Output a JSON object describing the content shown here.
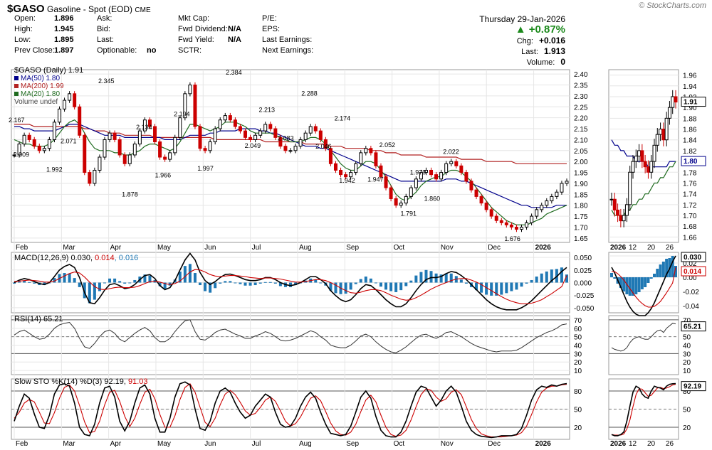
{
  "header": {
    "symbol": "$GASO",
    "name": "Gasoline - Spot (EOD)",
    "exchange": "CME",
    "logo": "© StockCharts.com",
    "date": "Thursday  29-Jan-2026",
    "pct_change": "▲ +0.87%",
    "quote_left": [
      [
        "Open:",
        "1.896"
      ],
      [
        "High:",
        "1.945"
      ],
      [
        "Low:",
        "1.895"
      ],
      [
        "Prev Close:",
        "1.897"
      ]
    ],
    "quote_mid": [
      [
        "Ask:",
        ""
      ],
      [
        "Bid:",
        ""
      ],
      [
        "Last:",
        ""
      ],
      [
        "Optionable:",
        "no"
      ]
    ],
    "quote_mid2": [
      [
        "Mkt Cap:",
        ""
      ],
      [
        "Fwd Dividend:",
        "N/A"
      ],
      [
        "Fwd Yield:",
        "N/A"
      ],
      [
        "SCTR:",
        ""
      ]
    ],
    "quote_mid3": [
      [
        "P/E:",
        ""
      ],
      [
        "EPS:",
        ""
      ],
      [
        "Last Earnings:",
        ""
      ],
      [
        "Next Earnings:",
        ""
      ]
    ],
    "quote_right": [
      [
        "Chg:",
        "+0.016"
      ],
      [
        "Last:",
        "1.913"
      ],
      [
        "Volume:",
        "0"
      ]
    ]
  },
  "colors": {
    "up": "#000000",
    "down": "#cc0000",
    "ma50": "#00008b",
    "ma200": "#b22222",
    "ma20": "#1f6b1f",
    "macd": "#000000",
    "signal": "#cc0000",
    "hist": "#1f78b4",
    "grid": "#e6e6e6"
  },
  "legend": {
    "price": "$GASO (Daily) 1.91",
    "ma50": "MA(50) 1.80",
    "ma200": "MA(200) 1.99",
    "ma20": "MA(20) 1.80",
    "volume": "Volume undef",
    "macd_a": "MACD(12,26,9) 0.030, ",
    "macd_b": "0.014",
    "macd_c": ", 0.016",
    "rsi": "RSI(14) 65.21",
    "sto_a": "Slow STO %K(14) %D(3) 92.19, ",
    "sto_b": "91.03"
  },
  "right_tags": {
    "price": "1.91",
    "ma": "1.80",
    "macd": "0.030",
    "signal": "0.014",
    "rsi": "65.21",
    "sto": "92.19"
  },
  "chart_data": {
    "type": "line",
    "title": "$GASO Gasoline - Spot (EOD) CME",
    "x_ticks": [
      "Feb",
      "Mar",
      "Apr",
      "May",
      "Jun",
      "Jul",
      "Aug",
      "Sep",
      "Oct",
      "Nov",
      "Dec",
      "2026"
    ],
    "zoom_x_ticks": [
      "2026",
      "12",
      "20",
      "26"
    ],
    "price_axis": {
      "ylim": [
        1.63,
        2.42
      ],
      "ticks": [
        "2.40",
        "2.35",
        "2.30",
        "2.25",
        "2.20",
        "2.15",
        "2.10",
        "2.05",
        "2.00",
        "1.95",
        "1.90",
        "1.85",
        "1.80",
        "1.75",
        "1.70",
        "1.65"
      ]
    },
    "zoom_price_axis": {
      "ylim": [
        1.65,
        1.97
      ],
      "ticks": [
        "1.96",
        "1.94",
        "1.92",
        "1.90",
        "1.88",
        "1.86",
        "1.84",
        "1.82",
        "1.80",
        "1.78",
        "1.76",
        "1.74",
        "1.72",
        "1.70",
        "1.68",
        "1.66"
      ]
    },
    "price_annotations": [
      {
        "m": 0,
        "v": 2.167
      },
      {
        "m": 0.1,
        "v": 2.009
      },
      {
        "m": 0.8,
        "v": 1.992
      },
      {
        "m": 1.1,
        "v": 2.071
      },
      {
        "m": 1.9,
        "v": 2.345
      },
      {
        "m": 2.4,
        "v": 1.878
      },
      {
        "m": 2.7,
        "v": 2.134
      },
      {
        "m": 3.1,
        "v": 1.966
      },
      {
        "m": 3.5,
        "v": 2.194
      },
      {
        "m": 4.0,
        "v": 1.997
      },
      {
        "m": 4.6,
        "v": 2.384
      },
      {
        "m": 5.0,
        "v": 2.049
      },
      {
        "m": 5.3,
        "v": 2.213
      },
      {
        "m": 5.7,
        "v": 2.083
      },
      {
        "m": 6.2,
        "v": 2.288
      },
      {
        "m": 6.5,
        "v": 2.046
      },
      {
        "m": 6.9,
        "v": 2.174
      },
      {
        "m": 7.0,
        "v": 1.942
      },
      {
        "m": 7.6,
        "v": 1.947
      },
      {
        "m": 7.85,
        "v": 2.052
      },
      {
        "m": 8.3,
        "v": 1.791
      },
      {
        "m": 8.5,
        "v": 1.979
      },
      {
        "m": 8.8,
        "v": 1.86
      },
      {
        "m": 9.2,
        "v": 2.022
      },
      {
        "m": 10.5,
        "v": 1.676
      }
    ],
    "close": [
      2.03,
      2.08,
      2.12,
      2.1,
      2.07,
      2.05,
      2.06,
      2.1,
      2.18,
      2.24,
      2.28,
      2.31,
      2.25,
      2.12,
      1.95,
      1.9,
      1.96,
      2.02,
      2.1,
      2.13,
      2.1,
      2.03,
      1.99,
      2.03,
      2.08,
      2.14,
      2.19,
      2.16,
      2.09,
      2.02,
      2.01,
      2.04,
      2.11,
      2.2,
      2.31,
      2.35,
      2.16,
      2.06,
      2.05,
      2.09,
      2.15,
      2.19,
      2.21,
      2.19,
      2.16,
      2.14,
      2.11,
      2.1,
      2.12,
      2.14,
      2.17,
      2.15,
      2.11,
      2.07,
      2.05,
      2.05,
      2.07,
      2.1,
      2.13,
      2.16,
      2.14,
      2.1,
      2.06,
      1.99,
      1.96,
      1.94,
      1.93,
      1.95,
      1.99,
      2.04,
      2.06,
      2.04,
      1.98,
      1.93,
      1.88,
      1.83,
      1.8,
      1.81,
      1.84,
      1.88,
      1.92,
      1.95,
      1.96,
      1.94,
      1.92,
      1.95,
      1.99,
      2.0,
      1.98,
      1.95,
      1.91,
      1.87,
      1.84,
      1.81,
      1.78,
      1.75,
      1.73,
      1.72,
      1.71,
      1.7,
      1.69,
      1.7,
      1.72,
      1.75,
      1.78,
      1.8,
      1.82,
      1.84,
      1.86,
      1.9,
      1.91
    ],
    "ma50": [
      2.16,
      2.16,
      2.15,
      2.15,
      2.14,
      2.14,
      2.14,
      2.14,
      2.14,
      2.15,
      2.16,
      2.17,
      2.17,
      2.17,
      2.16,
      2.15,
      2.14,
      2.13,
      2.12,
      2.12,
      2.12,
      2.12,
      2.11,
      2.11,
      2.11,
      2.11,
      2.11,
      2.11,
      2.11,
      2.11,
      2.1,
      2.1,
      2.1,
      2.1,
      2.11,
      2.12,
      2.12,
      2.12,
      2.12,
      2.13,
      2.13,
      2.14,
      2.14,
      2.14,
      2.14,
      2.15,
      2.15,
      2.15,
      2.15,
      2.14,
      2.14,
      2.13,
      2.13,
      2.12,
      2.11,
      2.1,
      2.09,
      2.08,
      2.07,
      2.07,
      2.07,
      2.06,
      2.06,
      2.05,
      2.04,
      2.03,
      2.02,
      2.01,
      2.0,
      1.99,
      1.98,
      1.97,
      1.96,
      1.95,
      1.94,
      1.93,
      1.92,
      1.91,
      1.91,
      1.91,
      1.91,
      1.91,
      1.91,
      1.91,
      1.91,
      1.91,
      1.92,
      1.92,
      1.92,
      1.91,
      1.91,
      1.9,
      1.89,
      1.88,
      1.87,
      1.86,
      1.85,
      1.84,
      1.83,
      1.82,
      1.81,
      1.8,
      1.8,
      1.79,
      1.79,
      1.79,
      1.79,
      1.79,
      1.8,
      1.8,
      1.8
    ],
    "ma200": [
      2.17,
      2.17,
      2.17,
      2.17,
      2.16,
      2.16,
      2.16,
      2.16,
      2.16,
      2.16,
      2.16,
      2.16,
      2.16,
      2.16,
      2.15,
      2.15,
      2.14,
      2.14,
      2.14,
      2.13,
      2.13,
      2.13,
      2.12,
      2.12,
      2.12,
      2.12,
      2.12,
      2.12,
      2.11,
      2.11,
      2.11,
      2.11,
      2.11,
      2.11,
      2.11,
      2.11,
      2.11,
      2.11,
      2.11,
      2.11,
      2.1,
      2.1,
      2.1,
      2.1,
      2.1,
      2.1,
      2.1,
      2.1,
      2.1,
      2.1,
      2.09,
      2.09,
      2.09,
      2.09,
      2.09,
      2.09,
      2.09,
      2.09,
      2.08,
      2.08,
      2.08,
      2.08,
      2.08,
      2.07,
      2.07,
      2.07,
      2.06,
      2.06,
      2.06,
      2.06,
      2.06,
      2.05,
      2.05,
      2.05,
      2.04,
      2.04,
      2.04,
      2.03,
      2.03,
      2.03,
      2.03,
      2.03,
      2.02,
      2.02,
      2.02,
      2.02,
      2.02,
      2.02,
      2.02,
      2.01,
      2.01,
      2.01,
      2.01,
      2.01,
      2.0,
      2.0,
      2.0,
      2.0,
      2.0,
      2.0,
      1.99,
      1.99,
      1.99,
      1.99,
      1.99,
      1.99,
      1.99,
      1.99,
      1.99,
      1.99,
      1.99
    ],
    "ma20": [
      2.1,
      2.09,
      2.08,
      2.08,
      2.07,
      2.07,
      2.07,
      2.08,
      2.1,
      2.13,
      2.16,
      2.18,
      2.19,
      2.17,
      2.13,
      2.09,
      2.06,
      2.05,
      2.05,
      2.05,
      2.04,
      2.04,
      2.03,
      2.03,
      2.04,
      2.05,
      2.07,
      2.08,
      2.08,
      2.07,
      2.06,
      2.05,
      2.06,
      2.09,
      2.13,
      2.17,
      2.17,
      2.16,
      2.15,
      2.14,
      2.15,
      2.16,
      2.18,
      2.18,
      2.18,
      2.17,
      2.16,
      2.14,
      2.13,
      2.13,
      2.13,
      2.13,
      2.12,
      2.11,
      2.1,
      2.09,
      2.09,
      2.09,
      2.1,
      2.11,
      2.11,
      2.1,
      2.08,
      2.05,
      2.02,
      1.99,
      1.97,
      1.96,
      1.96,
      1.98,
      2.0,
      2.0,
      1.99,
      1.96,
      1.93,
      1.89,
      1.85,
      1.83,
      1.82,
      1.84,
      1.86,
      1.89,
      1.91,
      1.92,
      1.93,
      1.93,
      1.95,
      1.96,
      1.96,
      1.95,
      1.93,
      1.91,
      1.88,
      1.85,
      1.82,
      1.79,
      1.77,
      1.75,
      1.73,
      1.72,
      1.71,
      1.71,
      1.71,
      1.72,
      1.73,
      1.74,
      1.76,
      1.77,
      1.78,
      1.79,
      1.8
    ],
    "zoom_close": [
      1.73,
      1.71,
      1.7,
      1.69,
      1.7,
      1.72,
      1.78,
      1.8,
      1.81,
      1.82,
      1.8,
      1.79,
      1.78,
      1.8,
      1.83,
      1.85,
      1.86,
      1.84,
      1.88,
      1.9,
      1.92,
      1.91
    ],
    "zoom_ma50": [
      1.84,
      1.83,
      1.83,
      1.82,
      1.82,
      1.81,
      1.81,
      1.81,
      1.8,
      1.8,
      1.8,
      1.8,
      1.79,
      1.79,
      1.79,
      1.79,
      1.79,
      1.79,
      1.79,
      1.8,
      1.8,
      1.8
    ],
    "zoom_ma20": [
      1.71,
      1.7,
      1.7,
      1.7,
      1.7,
      1.71,
      1.71,
      1.72,
      1.72,
      1.73,
      1.73,
      1.74,
      1.74,
      1.75,
      1.76,
      1.76,
      1.77,
      1.77,
      1.78,
      1.79,
      1.79,
      1.8
    ],
    "macd_axis": {
      "ylim": [
        -0.06,
        0.06
      ],
      "ticks": [
        "0.050",
        "0.025",
        "0.000",
        "-0.025",
        "-0.050"
      ]
    },
    "zoom_macd_axis": {
      "ylim": [
        -0.05,
        0.035
      ],
      "ticks": [
        "0.03",
        "0.02",
        "0.00",
        "-0.02",
        "-0.04"
      ]
    },
    "macd": [
      0.0,
      0.005,
      0.008,
      0.006,
      0.002,
      -0.002,
      -0.004,
      0.0,
      0.012,
      0.025,
      0.032,
      0.036,
      0.03,
      0.01,
      -0.02,
      -0.04,
      -0.042,
      -0.03,
      -0.015,
      -0.004,
      -0.002,
      -0.006,
      -0.012,
      -0.01,
      -0.004,
      0.006,
      0.014,
      0.016,
      0.008,
      -0.006,
      -0.014,
      -0.01,
      0.004,
      0.025,
      0.045,
      0.058,
      0.045,
      0.02,
      0.004,
      -0.004,
      0.002,
      0.01,
      0.016,
      0.017,
      0.014,
      0.01,
      0.006,
      0.004,
      0.004,
      0.006,
      0.01,
      0.01,
      0.006,
      0.0,
      -0.004,
      -0.006,
      -0.004,
      0.0,
      0.006,
      0.012,
      0.012,
      0.006,
      -0.002,
      -0.016,
      -0.026,
      -0.034,
      -0.038,
      -0.034,
      -0.024,
      -0.012,
      -0.004,
      -0.006,
      -0.014,
      -0.024,
      -0.034,
      -0.042,
      -0.048,
      -0.048,
      -0.042,
      -0.03,
      -0.016,
      -0.004,
      0.006,
      0.01,
      0.01,
      0.012,
      0.018,
      0.022,
      0.02,
      0.014,
      0.006,
      -0.004,
      -0.014,
      -0.024,
      -0.034,
      -0.042,
      -0.048,
      -0.052,
      -0.054,
      -0.054,
      -0.054,
      -0.05,
      -0.044,
      -0.036,
      -0.026,
      -0.016,
      -0.006,
      0.004,
      0.012,
      0.022,
      0.03
    ],
    "signal": [
      0.002,
      0.003,
      0.004,
      0.005,
      0.004,
      0.003,
      0.001,
      0.001,
      0.003,
      0.008,
      0.013,
      0.018,
      0.021,
      0.019,
      0.011,
      0.001,
      -0.008,
      -0.013,
      -0.014,
      -0.012,
      -0.01,
      -0.009,
      -0.01,
      -0.01,
      -0.009,
      -0.006,
      -0.002,
      0.002,
      0.003,
      0.001,
      -0.002,
      -0.004,
      -0.002,
      0.003,
      0.012,
      0.021,
      0.026,
      0.025,
      0.021,
      0.016,
      0.013,
      0.012,
      0.013,
      0.014,
      0.014,
      0.013,
      0.012,
      0.01,
      0.009,
      0.008,
      0.009,
      0.009,
      0.008,
      0.007,
      0.005,
      0.003,
      0.001,
      0.001,
      0.002,
      0.004,
      0.006,
      0.006,
      0.004,
      0.0,
      -0.005,
      -0.011,
      -0.016,
      -0.02,
      -0.021,
      -0.019,
      -0.016,
      -0.014,
      -0.014,
      -0.016,
      -0.02,
      -0.025,
      -0.029,
      -0.033,
      -0.035,
      -0.034,
      -0.03,
      -0.025,
      -0.019,
      -0.013,
      -0.008,
      -0.004,
      0.0,
      0.004,
      0.007,
      0.008,
      0.008,
      0.005,
      0.001,
      -0.004,
      -0.01,
      -0.016,
      -0.022,
      -0.028,
      -0.033,
      -0.037,
      -0.04,
      -0.042,
      -0.042,
      -0.041,
      -0.038,
      -0.034,
      -0.028,
      -0.022,
      -0.015,
      -0.008,
      0.014
    ],
    "rsi_axis": {
      "ylim": [
        5,
        75
      ],
      "ticks": [
        "70",
        "60",
        "50",
        "40",
        "30",
        "20",
        "10"
      ]
    },
    "rsi": [
      52,
      56,
      58,
      54,
      50,
      47,
      48,
      53,
      60,
      64,
      66,
      67,
      60,
      48,
      38,
      36,
      42,
      50,
      56,
      58,
      54,
      47,
      44,
      49,
      54,
      58,
      61,
      57,
      49,
      44,
      44,
      48,
      56,
      63,
      69,
      70,
      56,
      47,
      46,
      50,
      55,
      58,
      59,
      56,
      53,
      51,
      48,
      48,
      51,
      53,
      56,
      54,
      50,
      46,
      45,
      46,
      48,
      51,
      54,
      57,
      55,
      50,
      46,
      40,
      38,
      37,
      37,
      40,
      45,
      51,
      53,
      50,
      44,
      39,
      35,
      32,
      31,
      34,
      38,
      43,
      48,
      52,
      53,
      50,
      48,
      51,
      55,
      56,
      53,
      50,
      46,
      42,
      39,
      37,
      35,
      33,
      32,
      33,
      33,
      33,
      34,
      37,
      41,
      45,
      49,
      52,
      55,
      57,
      60,
      64,
      65.21
    ],
    "sto_axis": {
      "ylim": [
        0,
        100
      ],
      "ticks": [
        "80",
        "50",
        "20"
      ]
    },
    "sto_k": [
      30,
      55,
      75,
      68,
      42,
      20,
      18,
      40,
      75,
      90,
      92,
      88,
      60,
      20,
      8,
      6,
      25,
      60,
      85,
      88,
      70,
      30,
      14,
      30,
      60,
      85,
      90,
      75,
      35,
      12,
      12,
      35,
      70,
      92,
      95,
      90,
      50,
      18,
      15,
      30,
      60,
      80,
      85,
      78,
      60,
      45,
      35,
      40,
      55,
      65,
      75,
      70,
      45,
      25,
      20,
      22,
      35,
      55,
      70,
      78,
      68,
      45,
      25,
      10,
      8,
      6,
      8,
      22,
      45,
      70,
      80,
      68,
      38,
      15,
      6,
      4,
      4,
      12,
      30,
      55,
      78,
      88,
      85,
      70,
      55,
      65,
      80,
      88,
      78,
      55,
      30,
      15,
      8,
      5,
      4,
      3,
      4,
      6,
      6,
      6,
      8,
      18,
      40,
      65,
      82,
      88,
      86,
      90,
      88,
      91,
      92.19
    ],
    "sto_d": [
      35,
      45,
      60,
      66,
      62,
      45,
      27,
      26,
      44,
      68,
      86,
      90,
      80,
      56,
      29,
      11,
      13,
      30,
      57,
      78,
      81,
      63,
      38,
      21,
      35,
      58,
      78,
      83,
      67,
      41,
      20,
      20,
      39,
      66,
      86,
      92,
      78,
      53,
      28,
      21,
      35,
      57,
      75,
      81,
      74,
      61,
      47,
      40,
      43,
      53,
      65,
      70,
      63,
      47,
      30,
      22,
      26,
      37,
      53,
      68,
      72,
      64,
      46,
      27,
      14,
      8,
      7,
      12,
      25,
      46,
      65,
      73,
      62,
      40,
      20,
      8,
      5,
      7,
      15,
      32,
      54,
      74,
      84,
      81,
      70,
      63,
      67,
      78,
      82,
      74,
      54,
      33,
      18,
      9,
      6,
      4,
      4,
      4,
      5,
      6,
      7,
      11,
      22,
      41,
      62,
      78,
      85,
      88,
      88,
      90,
      91.03
    ],
    "zoom_rsi": [
      37,
      35,
      34,
      33,
      34,
      37,
      43,
      47,
      49,
      50,
      48,
      47,
      47,
      50,
      54,
      57,
      58,
      55,
      60,
      63,
      66,
      65.21
    ],
    "zoom_sto_k": [
      8,
      6,
      6,
      8,
      12,
      30,
      55,
      78,
      88,
      85,
      75,
      70,
      68,
      80,
      88,
      86,
      85,
      82,
      88,
      91,
      92,
      92.19
    ],
    "zoom_sto_d": [
      8,
      7,
      7,
      7,
      9,
      17,
      32,
      54,
      74,
      84,
      83,
      77,
      71,
      73,
      79,
      85,
      86,
      84,
      85,
      87,
      90,
      91.03
    ]
  }
}
